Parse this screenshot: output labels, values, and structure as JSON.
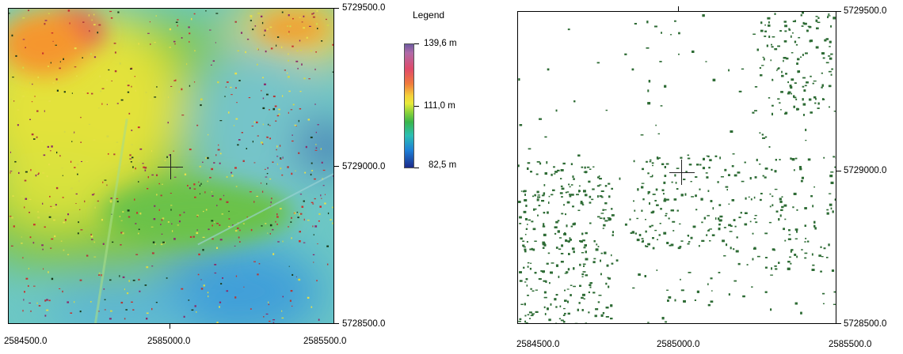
{
  "dem_map": {
    "y_labels": [
      "5729500.0",
      "5729000.0",
      "5728500.0"
    ],
    "x_labels": [
      "2584500.0",
      "2585000.0",
      "2585500.0"
    ]
  },
  "vegetation_map": {
    "y_labels": [
      "5729500.0",
      "5729000.0",
      "5728500.0"
    ],
    "x_labels": [
      "2584500.0",
      "2585000.0",
      "2585500.0"
    ],
    "dot_color": "#2d6b34"
  },
  "legend": {
    "title": "Legend",
    "max_label": "139,6 m",
    "mid_label": "111,0 m",
    "min_label": "82,5 m"
  }
}
